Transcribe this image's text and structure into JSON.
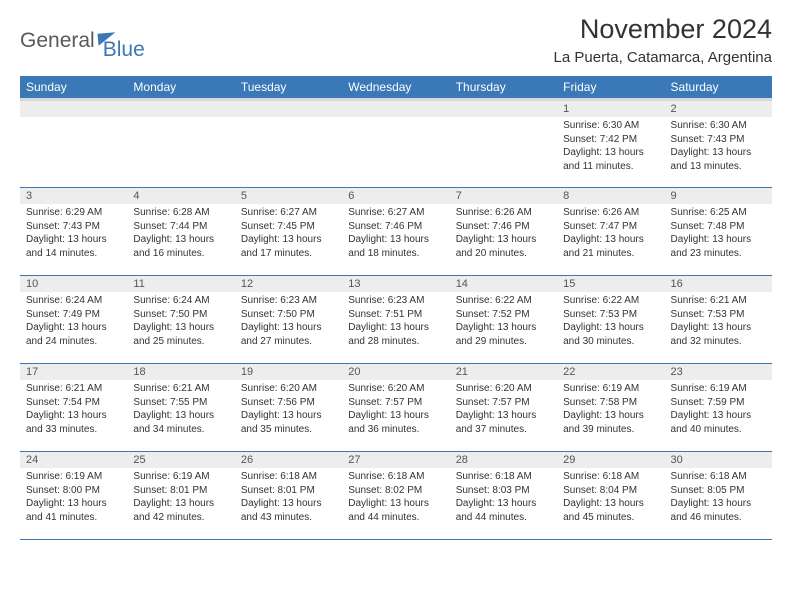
{
  "logo": {
    "text1": "General",
    "text2": "Blue"
  },
  "title": "November 2024",
  "location": "La Puerta, Catamarca, Argentina",
  "colors": {
    "header_bg": "#3b78b7",
    "header_text": "#ffffff",
    "daynum_bg": "#ededed",
    "row_border": "#3b78b7",
    "logo_gray": "#58595b",
    "logo_blue": "#3b78b7",
    "text": "#333333"
  },
  "columns": [
    "Sunday",
    "Monday",
    "Tuesday",
    "Wednesday",
    "Thursday",
    "Friday",
    "Saturday"
  ],
  "weeks": [
    [
      {
        "day": "",
        "sunrise": "",
        "sunset": "",
        "daylight": ""
      },
      {
        "day": "",
        "sunrise": "",
        "sunset": "",
        "daylight": ""
      },
      {
        "day": "",
        "sunrise": "",
        "sunset": "",
        "daylight": ""
      },
      {
        "day": "",
        "sunrise": "",
        "sunset": "",
        "daylight": ""
      },
      {
        "day": "",
        "sunrise": "",
        "sunset": "",
        "daylight": ""
      },
      {
        "day": "1",
        "sunrise": "Sunrise: 6:30 AM",
        "sunset": "Sunset: 7:42 PM",
        "daylight": "Daylight: 13 hours and 11 minutes."
      },
      {
        "day": "2",
        "sunrise": "Sunrise: 6:30 AM",
        "sunset": "Sunset: 7:43 PM",
        "daylight": "Daylight: 13 hours and 13 minutes."
      }
    ],
    [
      {
        "day": "3",
        "sunrise": "Sunrise: 6:29 AM",
        "sunset": "Sunset: 7:43 PM",
        "daylight": "Daylight: 13 hours and 14 minutes."
      },
      {
        "day": "4",
        "sunrise": "Sunrise: 6:28 AM",
        "sunset": "Sunset: 7:44 PM",
        "daylight": "Daylight: 13 hours and 16 minutes."
      },
      {
        "day": "5",
        "sunrise": "Sunrise: 6:27 AM",
        "sunset": "Sunset: 7:45 PM",
        "daylight": "Daylight: 13 hours and 17 minutes."
      },
      {
        "day": "6",
        "sunrise": "Sunrise: 6:27 AM",
        "sunset": "Sunset: 7:46 PM",
        "daylight": "Daylight: 13 hours and 18 minutes."
      },
      {
        "day": "7",
        "sunrise": "Sunrise: 6:26 AM",
        "sunset": "Sunset: 7:46 PM",
        "daylight": "Daylight: 13 hours and 20 minutes."
      },
      {
        "day": "8",
        "sunrise": "Sunrise: 6:26 AM",
        "sunset": "Sunset: 7:47 PM",
        "daylight": "Daylight: 13 hours and 21 minutes."
      },
      {
        "day": "9",
        "sunrise": "Sunrise: 6:25 AM",
        "sunset": "Sunset: 7:48 PM",
        "daylight": "Daylight: 13 hours and 23 minutes."
      }
    ],
    [
      {
        "day": "10",
        "sunrise": "Sunrise: 6:24 AM",
        "sunset": "Sunset: 7:49 PM",
        "daylight": "Daylight: 13 hours and 24 minutes."
      },
      {
        "day": "11",
        "sunrise": "Sunrise: 6:24 AM",
        "sunset": "Sunset: 7:50 PM",
        "daylight": "Daylight: 13 hours and 25 minutes."
      },
      {
        "day": "12",
        "sunrise": "Sunrise: 6:23 AM",
        "sunset": "Sunset: 7:50 PM",
        "daylight": "Daylight: 13 hours and 27 minutes."
      },
      {
        "day": "13",
        "sunrise": "Sunrise: 6:23 AM",
        "sunset": "Sunset: 7:51 PM",
        "daylight": "Daylight: 13 hours and 28 minutes."
      },
      {
        "day": "14",
        "sunrise": "Sunrise: 6:22 AM",
        "sunset": "Sunset: 7:52 PM",
        "daylight": "Daylight: 13 hours and 29 minutes."
      },
      {
        "day": "15",
        "sunrise": "Sunrise: 6:22 AM",
        "sunset": "Sunset: 7:53 PM",
        "daylight": "Daylight: 13 hours and 30 minutes."
      },
      {
        "day": "16",
        "sunrise": "Sunrise: 6:21 AM",
        "sunset": "Sunset: 7:53 PM",
        "daylight": "Daylight: 13 hours and 32 minutes."
      }
    ],
    [
      {
        "day": "17",
        "sunrise": "Sunrise: 6:21 AM",
        "sunset": "Sunset: 7:54 PM",
        "daylight": "Daylight: 13 hours and 33 minutes."
      },
      {
        "day": "18",
        "sunrise": "Sunrise: 6:21 AM",
        "sunset": "Sunset: 7:55 PM",
        "daylight": "Daylight: 13 hours and 34 minutes."
      },
      {
        "day": "19",
        "sunrise": "Sunrise: 6:20 AM",
        "sunset": "Sunset: 7:56 PM",
        "daylight": "Daylight: 13 hours and 35 minutes."
      },
      {
        "day": "20",
        "sunrise": "Sunrise: 6:20 AM",
        "sunset": "Sunset: 7:57 PM",
        "daylight": "Daylight: 13 hours and 36 minutes."
      },
      {
        "day": "21",
        "sunrise": "Sunrise: 6:20 AM",
        "sunset": "Sunset: 7:57 PM",
        "daylight": "Daylight: 13 hours and 37 minutes."
      },
      {
        "day": "22",
        "sunrise": "Sunrise: 6:19 AM",
        "sunset": "Sunset: 7:58 PM",
        "daylight": "Daylight: 13 hours and 39 minutes."
      },
      {
        "day": "23",
        "sunrise": "Sunrise: 6:19 AM",
        "sunset": "Sunset: 7:59 PM",
        "daylight": "Daylight: 13 hours and 40 minutes."
      }
    ],
    [
      {
        "day": "24",
        "sunrise": "Sunrise: 6:19 AM",
        "sunset": "Sunset: 8:00 PM",
        "daylight": "Daylight: 13 hours and 41 minutes."
      },
      {
        "day": "25",
        "sunrise": "Sunrise: 6:19 AM",
        "sunset": "Sunset: 8:01 PM",
        "daylight": "Daylight: 13 hours and 42 minutes."
      },
      {
        "day": "26",
        "sunrise": "Sunrise: 6:18 AM",
        "sunset": "Sunset: 8:01 PM",
        "daylight": "Daylight: 13 hours and 43 minutes."
      },
      {
        "day": "27",
        "sunrise": "Sunrise: 6:18 AM",
        "sunset": "Sunset: 8:02 PM",
        "daylight": "Daylight: 13 hours and 44 minutes."
      },
      {
        "day": "28",
        "sunrise": "Sunrise: 6:18 AM",
        "sunset": "Sunset: 8:03 PM",
        "daylight": "Daylight: 13 hours and 44 minutes."
      },
      {
        "day": "29",
        "sunrise": "Sunrise: 6:18 AM",
        "sunset": "Sunset: 8:04 PM",
        "daylight": "Daylight: 13 hours and 45 minutes."
      },
      {
        "day": "30",
        "sunrise": "Sunrise: 6:18 AM",
        "sunset": "Sunset: 8:05 PM",
        "daylight": "Daylight: 13 hours and 46 minutes."
      }
    ]
  ]
}
